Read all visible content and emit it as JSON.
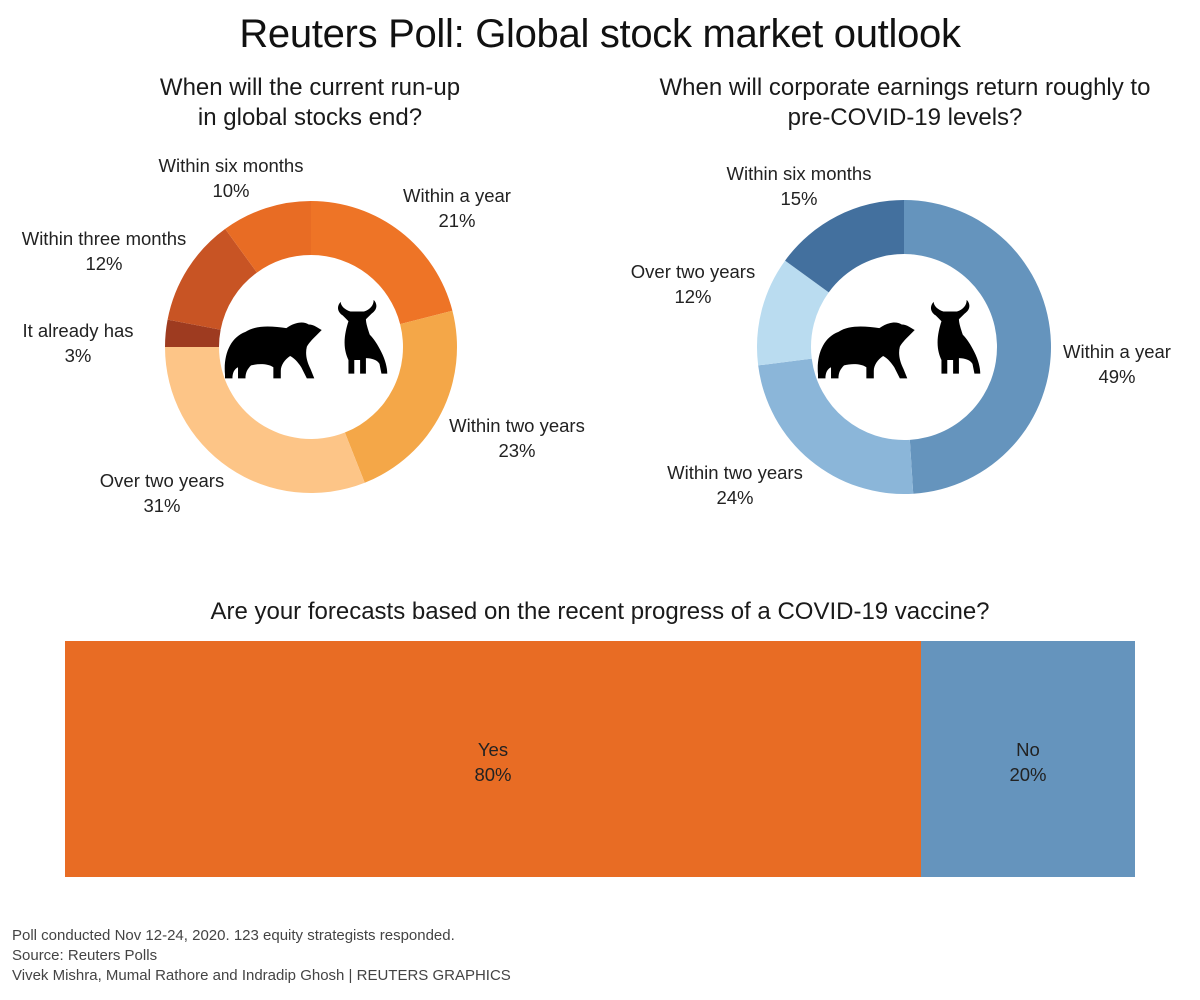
{
  "title": "Reuters Poll: Global stock market outlook",
  "chart_data": [
    {
      "type": "pie",
      "variant": "donut",
      "title": "When will the current run-up in global stocks end?",
      "title_lines": [
        "When will the current run-up",
        "in global stocks end?"
      ],
      "center_icons": [
        "bear-icon",
        "bull-icon"
      ],
      "slices": [
        {
          "label": "Within a year",
          "value": 21,
          "display": "21%",
          "color": "#ee7426"
        },
        {
          "label": "Within two years",
          "value": 23,
          "display": "23%",
          "color": "#f4a748"
        },
        {
          "label": "Over two years",
          "value": 31,
          "display": "31%",
          "color": "#fdc587"
        },
        {
          "label": "It already has",
          "value": 3,
          "display": "3%",
          "color": "#9e3b20"
        },
        {
          "label": "Within three months",
          "value": 12,
          "display": "12%",
          "color": "#c85424"
        },
        {
          "label": "Within six months",
          "value": 10,
          "display": "10%",
          "color": "#e86c24"
        }
      ]
    },
    {
      "type": "pie",
      "variant": "donut",
      "title": "When will corporate earnings return roughly to pre-COVID-19 levels?",
      "title_lines": [
        "When will corporate earnings return roughly to",
        "pre-COVID-19 levels?"
      ],
      "center_icons": [
        "bear-icon",
        "bull-icon"
      ],
      "slices": [
        {
          "label": "Within a year",
          "value": 49,
          "display": "49%",
          "color": "#6594bd"
        },
        {
          "label": "Within two years",
          "value": 24,
          "display": "24%",
          "color": "#8bb6d9"
        },
        {
          "label": "Over two years",
          "value": 12,
          "display": "12%",
          "color": "#badcf0"
        },
        {
          "label": "Within six months",
          "value": 15,
          "display": "15%",
          "color": "#43709e"
        }
      ]
    },
    {
      "type": "bar",
      "variant": "100%-stacked-horizontal",
      "title": "Are your forecasts based on the recent progress of a COVID-19 vaccine?",
      "segments": [
        {
          "label": "Yes",
          "value": 80,
          "display": "80%",
          "color": "#e86c24"
        },
        {
          "label": "No",
          "value": 20,
          "display": "20%",
          "color": "#6594bd"
        }
      ]
    }
  ],
  "footer": {
    "note": "Poll conducted Nov 12-24, 2020. 123 equity strategists responded.",
    "source": "Source: Reuters Polls",
    "credit": "Vivek Mishra, Mumal Rathore and Indradip Ghosh | REUTERS GRAPHICS"
  }
}
